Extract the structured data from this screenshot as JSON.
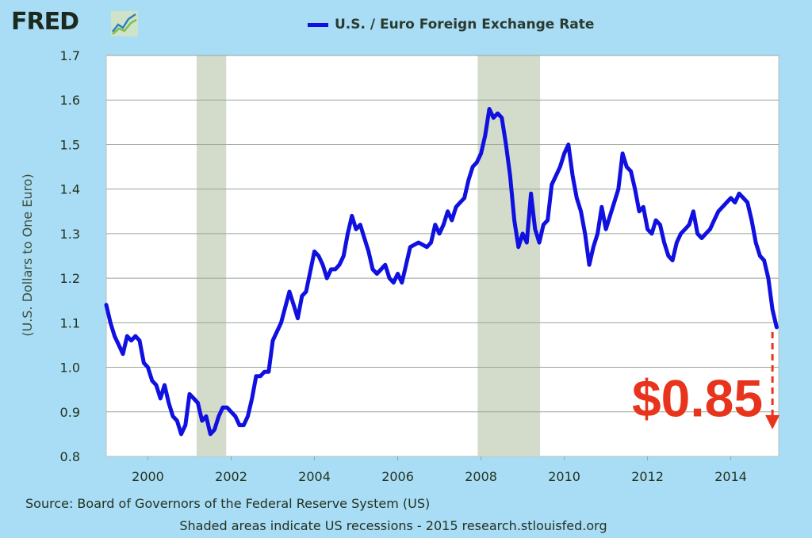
{
  "header": {
    "logo_text": "FRED",
    "logo_icon": "line-chart-icon"
  },
  "chart_data": {
    "type": "line",
    "title": "",
    "xlabel": "",
    "ylabel": "(U.S. Dollars to One Euro)",
    "xlim": [
      1999.0,
      2015.15
    ],
    "ylim": [
      0.8,
      1.7
    ],
    "grid": true,
    "legend_position": "top-center",
    "x_ticks": [
      "2000",
      "2002",
      "2004",
      "2006",
      "2008",
      "2010",
      "2012",
      "2014"
    ],
    "y_ticks": [
      "0.8",
      "0.9",
      "1.0",
      "1.1",
      "1.2",
      "1.3",
      "1.4",
      "1.5",
      "1.6",
      "1.7"
    ],
    "recessions": [
      [
        2001.17,
        2001.88
      ],
      [
        2007.92,
        2009.42
      ]
    ],
    "recession_color": "#d3dccb",
    "series": [
      {
        "name": "U.S. / Euro Foreign Exchange Rate",
        "color": "#1010e0",
        "x": [
          1999.0,
          1999.1,
          1999.2,
          1999.3,
          1999.4,
          1999.5,
          1999.6,
          1999.7,
          1999.8,
          1999.9,
          2000.0,
          2000.1,
          2000.2,
          2000.3,
          2000.4,
          2000.5,
          2000.6,
          2000.7,
          2000.8,
          2000.9,
          2001.0,
          2001.1,
          2001.2,
          2001.3,
          2001.4,
          2001.5,
          2001.6,
          2001.7,
          2001.8,
          2001.9,
          2002.0,
          2002.1,
          2002.2,
          2002.3,
          2002.4,
          2002.5,
          2002.6,
          2002.7,
          2002.8,
          2002.9,
          2003.0,
          2003.2,
          2003.4,
          2003.5,
          2003.6,
          2003.7,
          2003.8,
          2004.0,
          2004.1,
          2004.2,
          2004.3,
          2004.4,
          2004.5,
          2004.6,
          2004.7,
          2004.8,
          2004.9,
          2005.0,
          2005.1,
          2005.2,
          2005.3,
          2005.4,
          2005.5,
          2005.6,
          2005.7,
          2005.8,
          2005.9,
          2006.0,
          2006.1,
          2006.2,
          2006.3,
          2006.5,
          2006.7,
          2006.8,
          2006.9,
          2007.0,
          2007.1,
          2007.2,
          2007.3,
          2007.4,
          2007.5,
          2007.6,
          2007.7,
          2007.8,
          2007.9,
          2008.0,
          2008.1,
          2008.2,
          2008.3,
          2008.4,
          2008.5,
          2008.6,
          2008.7,
          2008.8,
          2008.9,
          2009.0,
          2009.1,
          2009.2,
          2009.3,
          2009.4,
          2009.5,
          2009.6,
          2009.7,
          2009.8,
          2009.9,
          2010.0,
          2010.1,
          2010.2,
          2010.3,
          2010.4,
          2010.5,
          2010.6,
          2010.7,
          2010.8,
          2010.9,
          2011.0,
          2011.1,
          2011.2,
          2011.3,
          2011.4,
          2011.5,
          2011.6,
          2011.7,
          2011.8,
          2011.9,
          2012.0,
          2012.1,
          2012.2,
          2012.3,
          2012.4,
          2012.5,
          2012.6,
          2012.7,
          2012.8,
          2012.9,
          2013.0,
          2013.1,
          2013.2,
          2013.3,
          2013.4,
          2013.5,
          2013.6,
          2013.7,
          2013.8,
          2013.9,
          2014.0,
          2014.1,
          2014.2,
          2014.3,
          2014.4,
          2014.5,
          2014.6,
          2014.7,
          2014.8,
          2014.9,
          2015.0,
          2015.1
        ],
        "values": [
          1.14,
          1.1,
          1.07,
          1.05,
          1.03,
          1.07,
          1.06,
          1.07,
          1.06,
          1.01,
          1.0,
          0.97,
          0.96,
          0.93,
          0.96,
          0.92,
          0.89,
          0.88,
          0.85,
          0.87,
          0.94,
          0.93,
          0.92,
          0.88,
          0.89,
          0.85,
          0.86,
          0.89,
          0.91,
          0.91,
          0.9,
          0.89,
          0.87,
          0.87,
          0.89,
          0.93,
          0.98,
          0.98,
          0.99,
          0.99,
          1.06,
          1.1,
          1.17,
          1.14,
          1.11,
          1.16,
          1.17,
          1.26,
          1.25,
          1.23,
          1.2,
          1.22,
          1.22,
          1.23,
          1.25,
          1.3,
          1.34,
          1.31,
          1.32,
          1.29,
          1.26,
          1.22,
          1.21,
          1.22,
          1.23,
          1.2,
          1.19,
          1.21,
          1.19,
          1.23,
          1.27,
          1.28,
          1.27,
          1.28,
          1.32,
          1.3,
          1.32,
          1.35,
          1.33,
          1.36,
          1.37,
          1.38,
          1.42,
          1.45,
          1.46,
          1.48,
          1.52,
          1.58,
          1.56,
          1.57,
          1.56,
          1.5,
          1.43,
          1.33,
          1.27,
          1.3,
          1.28,
          1.39,
          1.31,
          1.28,
          1.32,
          1.33,
          1.41,
          1.43,
          1.45,
          1.48,
          1.5,
          1.43,
          1.38,
          1.35,
          1.3,
          1.23,
          1.27,
          1.3,
          1.36,
          1.31,
          1.34,
          1.37,
          1.4,
          1.48,
          1.45,
          1.44,
          1.4,
          1.35,
          1.36,
          1.31,
          1.3,
          1.33,
          1.32,
          1.28,
          1.25,
          1.24,
          1.28,
          1.3,
          1.31,
          1.32,
          1.35,
          1.3,
          1.29,
          1.3,
          1.31,
          1.33,
          1.35,
          1.36,
          1.37,
          1.38,
          1.37,
          1.39,
          1.38,
          1.37,
          1.33,
          1.28,
          1.25,
          1.24,
          1.2,
          1.13,
          1.09
        ]
      }
    ],
    "annotation": {
      "text": "$0.85",
      "color": "#e8341c",
      "x": 2015.0,
      "value": 0.85,
      "arrow_from_value": 1.09
    }
  },
  "footer": {
    "source": "Source: Board of Governors of the Federal Reserve System (US)",
    "note": "Shaded areas indicate US recessions - 2015 research.stlouisfed.org"
  }
}
